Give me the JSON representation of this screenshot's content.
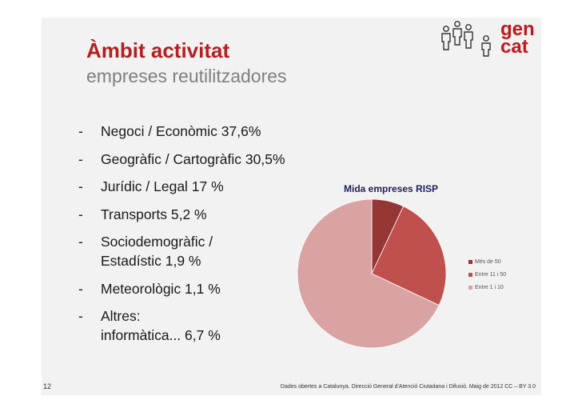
{
  "slide": {
    "title": "Àmbit activitat",
    "subtitle": "empreses reutilitzadores",
    "bullets": [
      {
        "lines": [
          "Negoci / Econòmic 37,6%"
        ]
      },
      {
        "lines": [
          "Geogràfic / Cartogràfic 30,5%"
        ]
      },
      {
        "lines": [
          "Jurídic / Legal 17 %"
        ]
      },
      {
        "lines": [
          "Transports 5,2 %"
        ]
      },
      {
        "lines": [
          "Sociodemogràfic /",
          "Estadístic 1,9 %"
        ]
      },
      {
        "lines": [
          "Meteorològic 1,1 %"
        ]
      },
      {
        "lines": [
          "Altres:",
          "informàtica... 6,7 %"
        ]
      }
    ],
    "dash": "-",
    "page_number": "12",
    "footer": "Dades obertes a Catalunya. Direcció General d'Atenció Ciutadana i Difusió. Maig de 2012 CC – BY 3.0"
  },
  "logo": {
    "line1": "gen",
    "line2": "cat",
    "color": "#c4161c",
    "icon": "people-icon"
  },
  "chart_data": {
    "type": "pie",
    "title": "Mida empreses RISP",
    "series": [
      {
        "name": "Més de 50",
        "value": 7,
        "color": "#953735"
      },
      {
        "name": "Entre 11 i 50",
        "value": 25,
        "color": "#c0504d"
      },
      {
        "name": "Entre 1 i 10",
        "value": 68,
        "color": "#d9a3a3"
      }
    ],
    "legend_position": "right"
  }
}
